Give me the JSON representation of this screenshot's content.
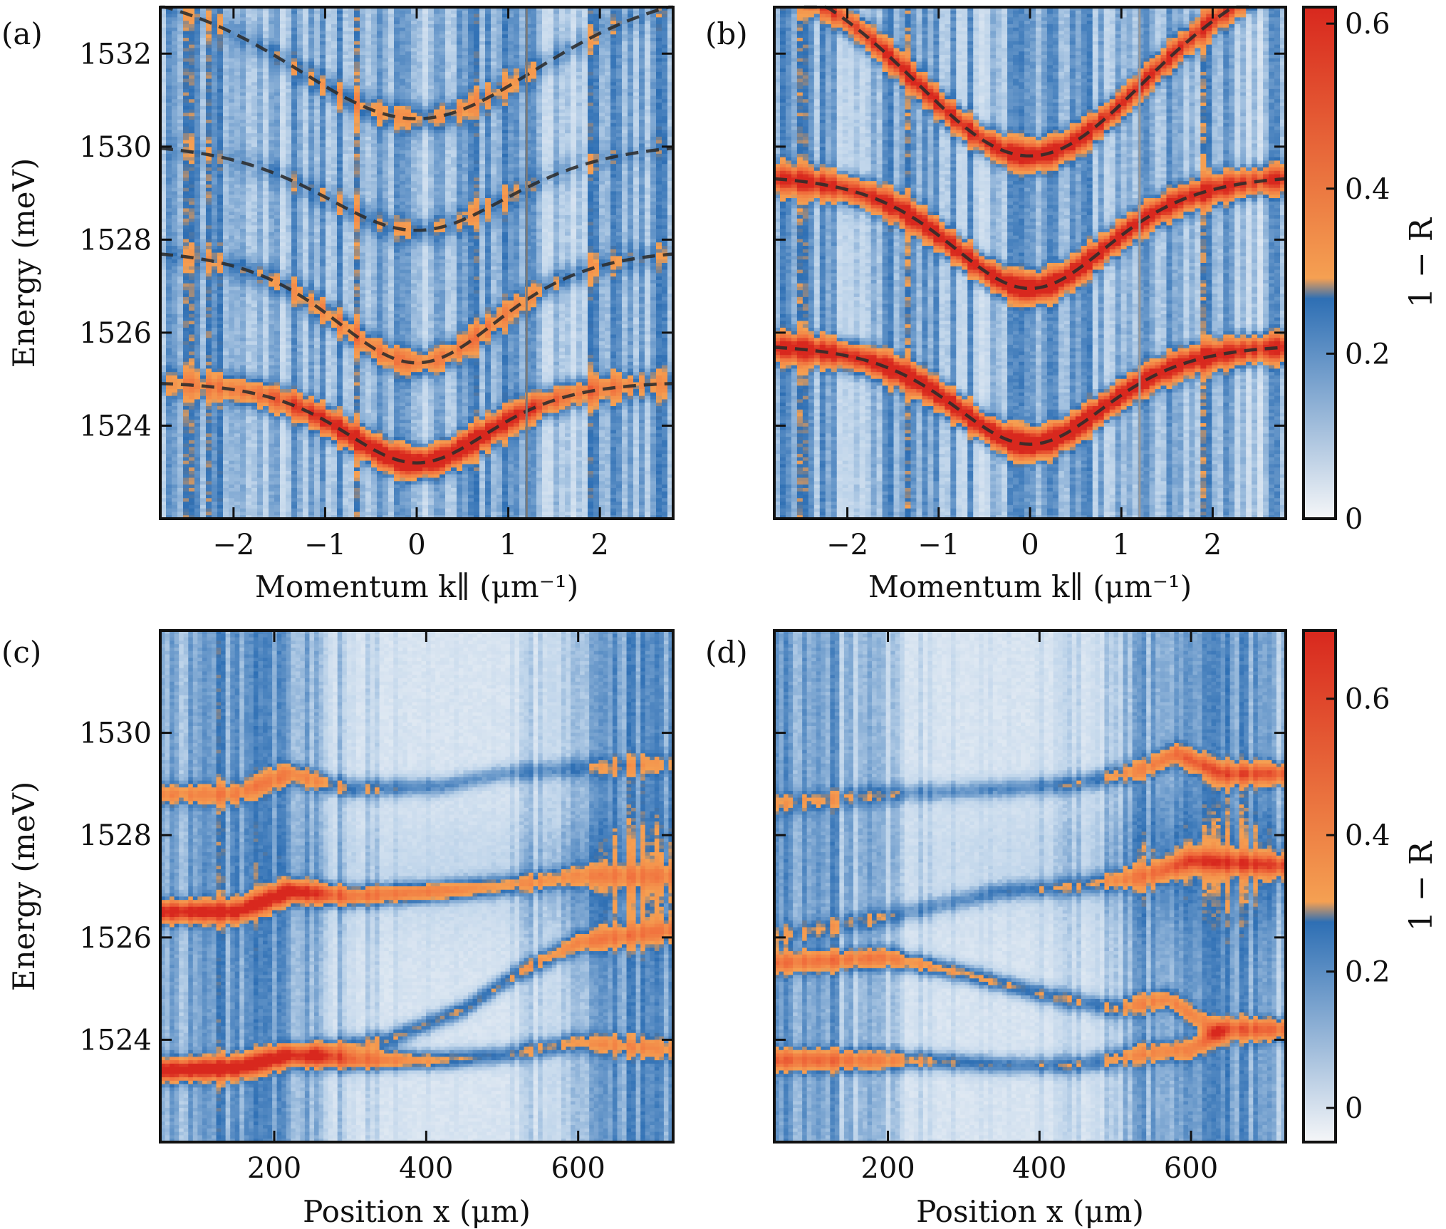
{
  "panels": [
    {
      "tag": "(a)",
      "ylabel": "Energy (meV)",
      "xlabel": "Momentum k∥ (μm⁻¹)",
      "xticks": [
        "−2",
        "−1",
        "0",
        "1",
        "2"
      ],
      "yticks": [
        "1524",
        "1526",
        "1528",
        "1530",
        "1532"
      ]
    },
    {
      "tag": "(b)",
      "ylabel": "",
      "xlabel": "Momentum k∥ (μm⁻¹)",
      "xticks": [
        "−2",
        "−1",
        "0",
        "1",
        "2"
      ],
      "yticks": []
    },
    {
      "tag": "(c)",
      "ylabel": "Energy (meV)",
      "xlabel": "Position x (μm)",
      "xticks": [
        "200",
        "400",
        "600"
      ],
      "yticks": [
        "1524",
        "1526",
        "1528",
        "1530"
      ]
    },
    {
      "tag": "(d)",
      "ylabel": "",
      "xlabel": "Position x (μm)",
      "xticks": [
        "200",
        "400",
        "600"
      ],
      "yticks": []
    }
  ],
  "colorbars": [
    {
      "label": "1 − R",
      "ticks": [
        "0",
        "0.2",
        "0.4",
        "0.6"
      ],
      "range": [
        0,
        0.62
      ]
    },
    {
      "label": "1 − R",
      "ticks": [
        "0",
        "0.2",
        "0.4",
        "0.6"
      ],
      "range": [
        -0.05,
        0.7
      ]
    }
  ],
  "colors": {
    "low": "#f5f6f8",
    "mid": "#2e6fb4",
    "orange": "#f5a052",
    "high": "#d8281e",
    "fit": "#2b2b2b",
    "marker": "#7a7a7a"
  },
  "chart_data": [
    {
      "type": "heatmap",
      "panel": "a",
      "xlim": [
        -2.8,
        2.8
      ],
      "ylim": [
        1522.0,
        1533.0
      ],
      "vertical_marker_x": 1.2,
      "series": [
        {
          "E0": 1523.2,
          "Einf": 1524.95,
          "k0": 1.1,
          "peak_intensity": 0.58
        },
        {
          "E0": 1525.35,
          "Einf": 1527.8,
          "k0": 1.25,
          "peak_intensity": 0.22
        },
        {
          "E0": 1528.2,
          "Einf": 1530.1,
          "k0": 1.4,
          "peak_intensity": 0.1
        },
        {
          "E0": 1530.6,
          "Einf": 1533.6,
          "k0": 1.9,
          "peak_intensity": 0.14
        }
      ]
    },
    {
      "type": "heatmap",
      "panel": "b",
      "xlim": [
        -2.8,
        2.8
      ],
      "ylim": [
        1522.0,
        1533.0
      ],
      "vertical_marker_x": 1.2,
      "series": [
        {
          "E0": 1523.6,
          "Einf": 1525.75,
          "k0": 1.15,
          "peak_intensity": 0.6
        },
        {
          "E0": 1526.95,
          "Einf": 1529.4,
          "k0": 1.2,
          "peak_intensity": 0.56
        },
        {
          "E0": 1529.8,
          "Einf": 1534.4,
          "k0": 1.85,
          "peak_intensity": 0.5
        }
      ]
    },
    {
      "type": "heatmap",
      "panel": "c",
      "xlim": [
        50,
        725
      ],
      "ylim": [
        1522.0,
        1532.0
      ],
      "series": [
        {
          "x": [
            50,
            150,
            220,
            300,
            420,
            500,
            600,
            725
          ],
          "y": [
            1523.4,
            1523.45,
            1523.7,
            1523.6,
            1523.6,
            1523.7,
            1523.95,
            1523.8
          ],
          "intensity": [
            0.62,
            0.6,
            0.55,
            0.42,
            0.25,
            0.18,
            0.16,
            0.12
          ]
        },
        {
          "x": [
            250,
            350,
            450,
            520,
            600,
            725
          ],
          "y": [
            1523.8,
            1524.0,
            1524.6,
            1525.3,
            1525.9,
            1526.15
          ],
          "intensity": [
            0.15,
            0.2,
            0.22,
            0.2,
            0.22,
            0.18
          ]
        },
        {
          "x": [
            50,
            150,
            220,
            300,
            420,
            500,
            600,
            725
          ],
          "y": [
            1526.5,
            1526.5,
            1526.9,
            1526.8,
            1526.9,
            1527.0,
            1527.2,
            1527.2
          ],
          "intensity": [
            0.55,
            0.52,
            0.6,
            0.35,
            0.32,
            0.2,
            0.14,
            0.1
          ]
        },
        {
          "x": [
            50,
            150,
            220,
            300,
            420,
            500,
            600,
            725
          ],
          "y": [
            1528.8,
            1528.8,
            1529.2,
            1528.9,
            1528.95,
            1529.2,
            1529.3,
            1529.4
          ],
          "intensity": [
            0.2,
            0.18,
            0.22,
            0.17,
            0.15,
            0.12,
            0.08,
            0.06
          ]
        }
      ]
    },
    {
      "type": "heatmap",
      "panel": "d",
      "xlim": [
        50,
        725
      ],
      "ylim": [
        1522.0,
        1532.0
      ],
      "series": [
        {
          "x": [
            50,
            150,
            250,
            350,
            450,
            550,
            600,
            640,
            725
          ],
          "y": [
            1523.6,
            1523.6,
            1523.6,
            1523.5,
            1523.5,
            1523.75,
            1523.8,
            1524.2,
            1524.2
          ],
          "intensity": [
            0.32,
            0.3,
            0.22,
            0.18,
            0.16,
            0.18,
            0.2,
            0.34,
            0.33
          ]
        },
        {
          "x": [
            50,
            200,
            300,
            400,
            500,
            570,
            600,
            640
          ],
          "y": [
            1525.5,
            1525.6,
            1525.3,
            1524.9,
            1524.6,
            1524.8,
            1524.5,
            1524.1
          ],
          "intensity": [
            0.26,
            0.28,
            0.24,
            0.2,
            0.16,
            0.2,
            0.18,
            0.14
          ]
        },
        {
          "x": [
            50,
            200,
            350,
            450,
            540,
            600,
            725
          ],
          "y": [
            1526.0,
            1526.4,
            1526.9,
            1527.0,
            1527.2,
            1527.5,
            1527.4
          ],
          "intensity": [
            0.06,
            0.1,
            0.14,
            0.14,
            0.2,
            0.36,
            0.36
          ]
        },
        {
          "x": [
            50,
            200,
            350,
            450,
            540,
            580,
            640,
            725
          ],
          "y": [
            1528.6,
            1528.8,
            1528.9,
            1529.0,
            1529.3,
            1529.6,
            1529.2,
            1529.2
          ],
          "intensity": [
            0.08,
            0.1,
            0.14,
            0.14,
            0.18,
            0.3,
            0.36,
            0.38
          ]
        }
      ]
    }
  ]
}
